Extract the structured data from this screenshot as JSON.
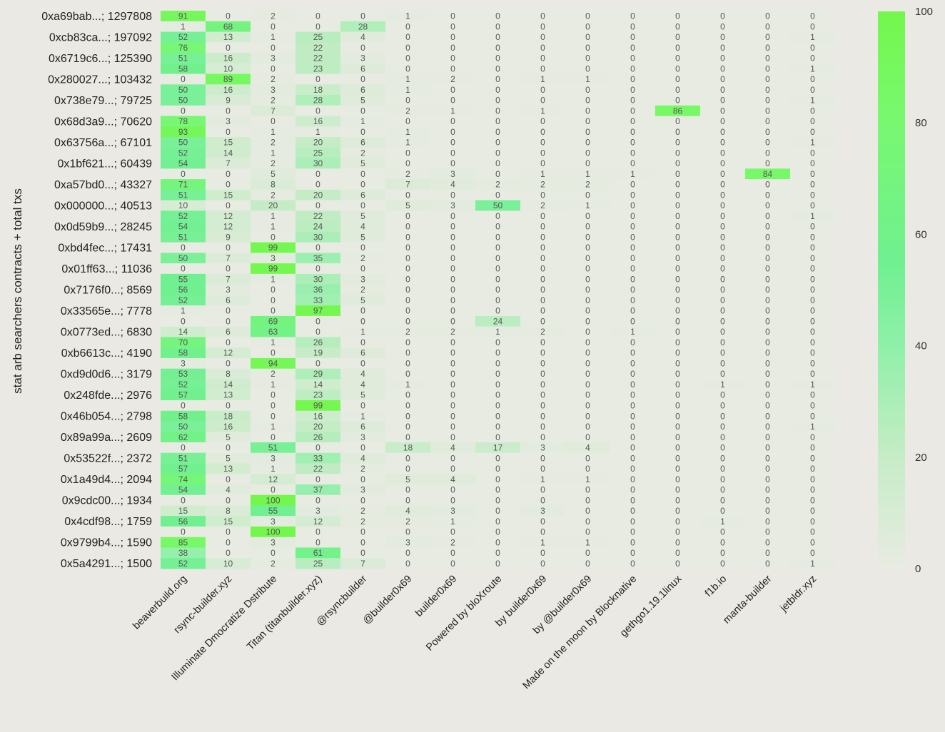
{
  "chart_data": {
    "type": "heatmap",
    "title": "",
    "xlabel": "",
    "ylabel": "stat arb searchers contracts + total txs",
    "value_range": [
      0,
      100
    ],
    "colorbar": {
      "ticks": [
        0,
        20,
        40,
        60,
        80,
        100
      ],
      "colors": [
        "#e8ebe2",
        "#c6ecc6",
        "#8ff0a8",
        "#70f090",
        "#78f870",
        "#74f74c"
      ]
    },
    "columns": [
      "beaverbuild.org",
      "rsync-builder.xyz",
      "Illuminate Dmocratize Dstribute",
      "Titan (titanbuilder.xyz)",
      "@rsyncbuilder",
      "@builder0x69",
      "builder0x69",
      "Powered by bloXroute",
      "by builder0x69",
      "by @builder0x69",
      "Made on the moon by Blocknative",
      "gethgo1.19.1linux",
      "f1b.io",
      "manta-builder",
      "jetbldr.xyz"
    ],
    "row_labels": [
      "0xa69bab...; 1297808",
      "",
      "0xcb83ca...; 197092",
      "",
      "0x6719c6...; 125390",
      "",
      "0x280027...; 103432",
      "",
      "0x738e79...; 79725",
      "",
      "0x68d3a9...; 70620",
      "",
      "0x63756a...; 67101",
      "",
      "0x1bf621...; 60439",
      "",
      "0xa57bd0...; 43327",
      "",
      "0x000000...; 40513",
      "",
      "0x0d59b9...; 28245",
      "",
      "0xbd4fec...; 17431",
      "",
      "0x01ff63...; 11036",
      "",
      "0x7176f0...; 8569",
      "",
      "0x33565e...; 7778",
      "",
      "0x0773ed...; 6830",
      "",
      "0xb6613c...; 4190",
      "",
      "0xd9d0d6...; 3179",
      "",
      "0x248fde...; 2976",
      "",
      "0x46b054...; 2798",
      "",
      "0x89a99a...; 2609",
      "",
      "0x53522f...; 2372",
      "",
      "0x1a49d4...; 2094",
      "",
      "0x9cdc00...; 1934",
      "",
      "0x4cdf98...; 1759",
      "",
      "0x9799b4...; 1590",
      "",
      "0x5a4291...; 1500"
    ],
    "values": [
      [
        91,
        0,
        2,
        0,
        0,
        1,
        0,
        0,
        0,
        0,
        0,
        0,
        0,
        0,
        0
      ],
      [
        1,
        68,
        0,
        0,
        28,
        0,
        0,
        0,
        0,
        0,
        0,
        0,
        0,
        0,
        0
      ],
      [
        52,
        13,
        1,
        25,
        4,
        0,
        0,
        0,
        0,
        0,
        0,
        0,
        0,
        0,
        1
      ],
      [
        76,
        0,
        0,
        22,
        0,
        0,
        0,
        0,
        0,
        0,
        0,
        0,
        0,
        0,
        0
      ],
      [
        51,
        16,
        3,
        22,
        3,
        0,
        0,
        0,
        0,
        0,
        0,
        0,
        0,
        0,
        0
      ],
      [
        58,
        10,
        0,
        23,
        6,
        0,
        0,
        0,
        0,
        0,
        0,
        0,
        0,
        0,
        1
      ],
      [
        0,
        89,
        2,
        0,
        0,
        1,
        2,
        0,
        1,
        1,
        0,
        0,
        0,
        0,
        0
      ],
      [
        50,
        16,
        3,
        18,
        6,
        1,
        0,
        0,
        0,
        0,
        0,
        0,
        0,
        0,
        0
      ],
      [
        50,
        9,
        2,
        28,
        5,
        0,
        0,
        0,
        0,
        0,
        0,
        0,
        0,
        0,
        1
      ],
      [
        0,
        0,
        7,
        0,
        0,
        2,
        1,
        0,
        1,
        0,
        0,
        86,
        0,
        0,
        0
      ],
      [
        78,
        3,
        0,
        16,
        1,
        0,
        0,
        0,
        0,
        0,
        0,
        0,
        0,
        0,
        0
      ],
      [
        93,
        0,
        1,
        1,
        0,
        1,
        0,
        0,
        0,
        0,
        0,
        0,
        0,
        0,
        0
      ],
      [
        50,
        15,
        2,
        20,
        6,
        1,
        0,
        0,
        0,
        0,
        0,
        0,
        0,
        0,
        1
      ],
      [
        52,
        14,
        1,
        25,
        2,
        0,
        0,
        0,
        0,
        0,
        0,
        0,
        0,
        0,
        0
      ],
      [
        54,
        7,
        2,
        30,
        5,
        0,
        0,
        0,
        0,
        0,
        0,
        0,
        0,
        0,
        0
      ],
      [
        0,
        0,
        5,
        0,
        0,
        2,
        3,
        0,
        1,
        1,
        1,
        0,
        0,
        84,
        0
      ],
      [
        71,
        0,
        8,
        0,
        0,
        7,
        4,
        2,
        2,
        2,
        0,
        0,
        0,
        0,
        0
      ],
      [
        51,
        15,
        2,
        20,
        6,
        0,
        0,
        0,
        0,
        0,
        0,
        0,
        0,
        0,
        0
      ],
      [
        10,
        0,
        20,
        0,
        0,
        5,
        3,
        50,
        2,
        1,
        0,
        0,
        0,
        0,
        0
      ],
      [
        52,
        12,
        1,
        22,
        5,
        0,
        0,
        0,
        0,
        0,
        0,
        0,
        0,
        0,
        1
      ],
      [
        54,
        12,
        1,
        24,
        4,
        0,
        0,
        0,
        0,
        0,
        0,
        0,
        0,
        0,
        0
      ],
      [
        51,
        9,
        0,
        30,
        5,
        0,
        0,
        0,
        0,
        0,
        0,
        0,
        0,
        0,
        0
      ],
      [
        0,
        0,
        99,
        0,
        0,
        0,
        0,
        0,
        0,
        0,
        0,
        0,
        0,
        0,
        0
      ],
      [
        50,
        7,
        3,
        35,
        2,
        0,
        0,
        0,
        0,
        0,
        0,
        0,
        0,
        0,
        0
      ],
      [
        0,
        0,
        99,
        0,
        0,
        0,
        0,
        0,
        0,
        0,
        0,
        0,
        0,
        0,
        0
      ],
      [
        55,
        7,
        1,
        30,
        3,
        0,
        0,
        0,
        0,
        0,
        0,
        0,
        0,
        0,
        0
      ],
      [
        56,
        3,
        0,
        36,
        2,
        0,
        0,
        0,
        0,
        0,
        0,
        0,
        0,
        0,
        0
      ],
      [
        52,
        6,
        0,
        33,
        5,
        0,
        0,
        0,
        0,
        0,
        0,
        0,
        0,
        0,
        0
      ],
      [
        1,
        0,
        0,
        97,
        0,
        0,
        0,
        0,
        0,
        0,
        0,
        0,
        0,
        0,
        0
      ],
      [
        0,
        0,
        69,
        0,
        0,
        0,
        0,
        24,
        0,
        0,
        0,
        0,
        0,
        0,
        0
      ],
      [
        14,
        6,
        63,
        0,
        1,
        2,
        2,
        1,
        2,
        0,
        1,
        0,
        0,
        0,
        0
      ],
      [
        70,
        0,
        1,
        26,
        0,
        0,
        0,
        0,
        0,
        0,
        0,
        0,
        0,
        0,
        0
      ],
      [
        58,
        12,
        0,
        19,
        6,
        0,
        0,
        0,
        0,
        0,
        0,
        0,
        0,
        0,
        0
      ],
      [
        3,
        0,
        94,
        0,
        0,
        0,
        0,
        0,
        0,
        0,
        0,
        0,
        0,
        0,
        0
      ],
      [
        53,
        8,
        2,
        29,
        4,
        0,
        0,
        0,
        0,
        0,
        0,
        0,
        0,
        0,
        0
      ],
      [
        52,
        14,
        1,
        14,
        4,
        1,
        0,
        0,
        0,
        0,
        0,
        0,
        1,
        0,
        1
      ],
      [
        57,
        13,
        0,
        23,
        5,
        0,
        0,
        0,
        0,
        0,
        0,
        0,
        0,
        0,
        0
      ],
      [
        0,
        0,
        0,
        99,
        0,
        0,
        0,
        0,
        0,
        0,
        0,
        0,
        0,
        0,
        0
      ],
      [
        58,
        18,
        0,
        16,
        1,
        0,
        0,
        0,
        0,
        0,
        0,
        0,
        0,
        0,
        0
      ],
      [
        50,
        16,
        1,
        20,
        6,
        0,
        0,
        0,
        0,
        0,
        0,
        0,
        0,
        0,
        1
      ],
      [
        62,
        5,
        0,
        26,
        3,
        0,
        0,
        0,
        0,
        0,
        0,
        0,
        0,
        0,
        0
      ],
      [
        0,
        0,
        51,
        0,
        0,
        18,
        4,
        17,
        3,
        4,
        0,
        0,
        0,
        0,
        0
      ],
      [
        51,
        5,
        3,
        33,
        4,
        0,
        0,
        0,
        0,
        0,
        0,
        0,
        0,
        0,
        0
      ],
      [
        57,
        13,
        1,
        22,
        2,
        0,
        0,
        0,
        0,
        0,
        0,
        0,
        0,
        0,
        0
      ],
      [
        74,
        0,
        12,
        0,
        0,
        5,
        4,
        0,
        1,
        1,
        0,
        0,
        0,
        0,
        0
      ],
      [
        54,
        4,
        0,
        37,
        3,
        0,
        0,
        0,
        0,
        0,
        0,
        0,
        0,
        0,
        0
      ],
      [
        0,
        0,
        100,
        0,
        0,
        0,
        0,
        0,
        0,
        0,
        0,
        0,
        0,
        0,
        0
      ],
      [
        15,
        8,
        55,
        3,
        2,
        4,
        3,
        0,
        3,
        0,
        0,
        0,
        0,
        0,
        0
      ],
      [
        56,
        15,
        3,
        12,
        2,
        2,
        1,
        0,
        0,
        0,
        0,
        0,
        1,
        0,
        0
      ],
      [
        0,
        0,
        100,
        0,
        0,
        0,
        0,
        0,
        0,
        0,
        0,
        0,
        0,
        0,
        0
      ],
      [
        85,
        0,
        3,
        0,
        0,
        3,
        2,
        0,
        1,
        1,
        0,
        0,
        0,
        0,
        0
      ],
      [
        38,
        0,
        0,
        61,
        0,
        0,
        0,
        0,
        0,
        0,
        0,
        0,
        0,
        0,
        0
      ],
      [
        52,
        10,
        2,
        25,
        7,
        0,
        0,
        0,
        0,
        0,
        0,
        0,
        0,
        0,
        1
      ]
    ]
  }
}
